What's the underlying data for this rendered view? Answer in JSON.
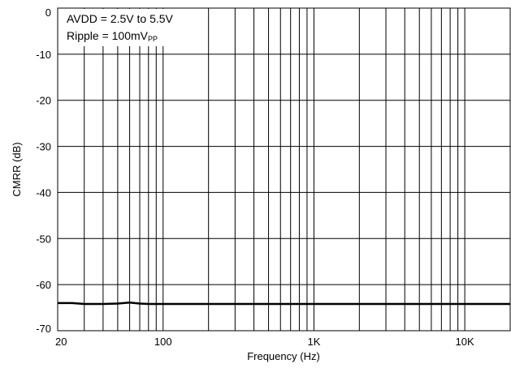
{
  "chart_data": {
    "type": "line",
    "title": "",
    "xlabel": "Frequency (Hz)",
    "ylabel": "CMRR (dB)",
    "x_scale": "log",
    "xlim": [
      20,
      20000
    ],
    "ylim": [
      -70,
      0
    ],
    "grid": true,
    "x_tick_labels": [
      {
        "value": 20,
        "label": "20"
      },
      {
        "value": 100,
        "label": "100"
      },
      {
        "value": 1000,
        "label": "1K"
      },
      {
        "value": 10000,
        "label": "10K"
      }
    ],
    "y_tick_labels": [
      {
        "value": 0,
        "label": "0"
      },
      {
        "value": -10,
        "label": "-10"
      },
      {
        "value": -20,
        "label": "-20"
      },
      {
        "value": -30,
        "label": "-30"
      },
      {
        "value": -40,
        "label": "-40"
      },
      {
        "value": -50,
        "label": "-50"
      },
      {
        "value": -60,
        "label": "-60"
      },
      {
        "value": -70,
        "label": "-70"
      }
    ],
    "annotation": {
      "line1": "AVDD = 2.5V to 5.5V",
      "line2_main": "Ripple = 100mV",
      "line2_sub": "PP"
    },
    "series": [
      {
        "x": [
          20,
          25,
          30,
          40,
          50,
          60,
          70,
          80,
          100,
          200,
          500,
          1000,
          2000,
          5000,
          10000,
          20000
        ],
        "y": [
          -64.0,
          -64.0,
          -64.2,
          -64.2,
          -64.1,
          -63.9,
          -64.1,
          -64.2,
          -64.2,
          -64.2,
          -64.2,
          -64.2,
          -64.2,
          -64.2,
          -64.2,
          -64.2
        ],
        "color": "#000000"
      }
    ]
  }
}
